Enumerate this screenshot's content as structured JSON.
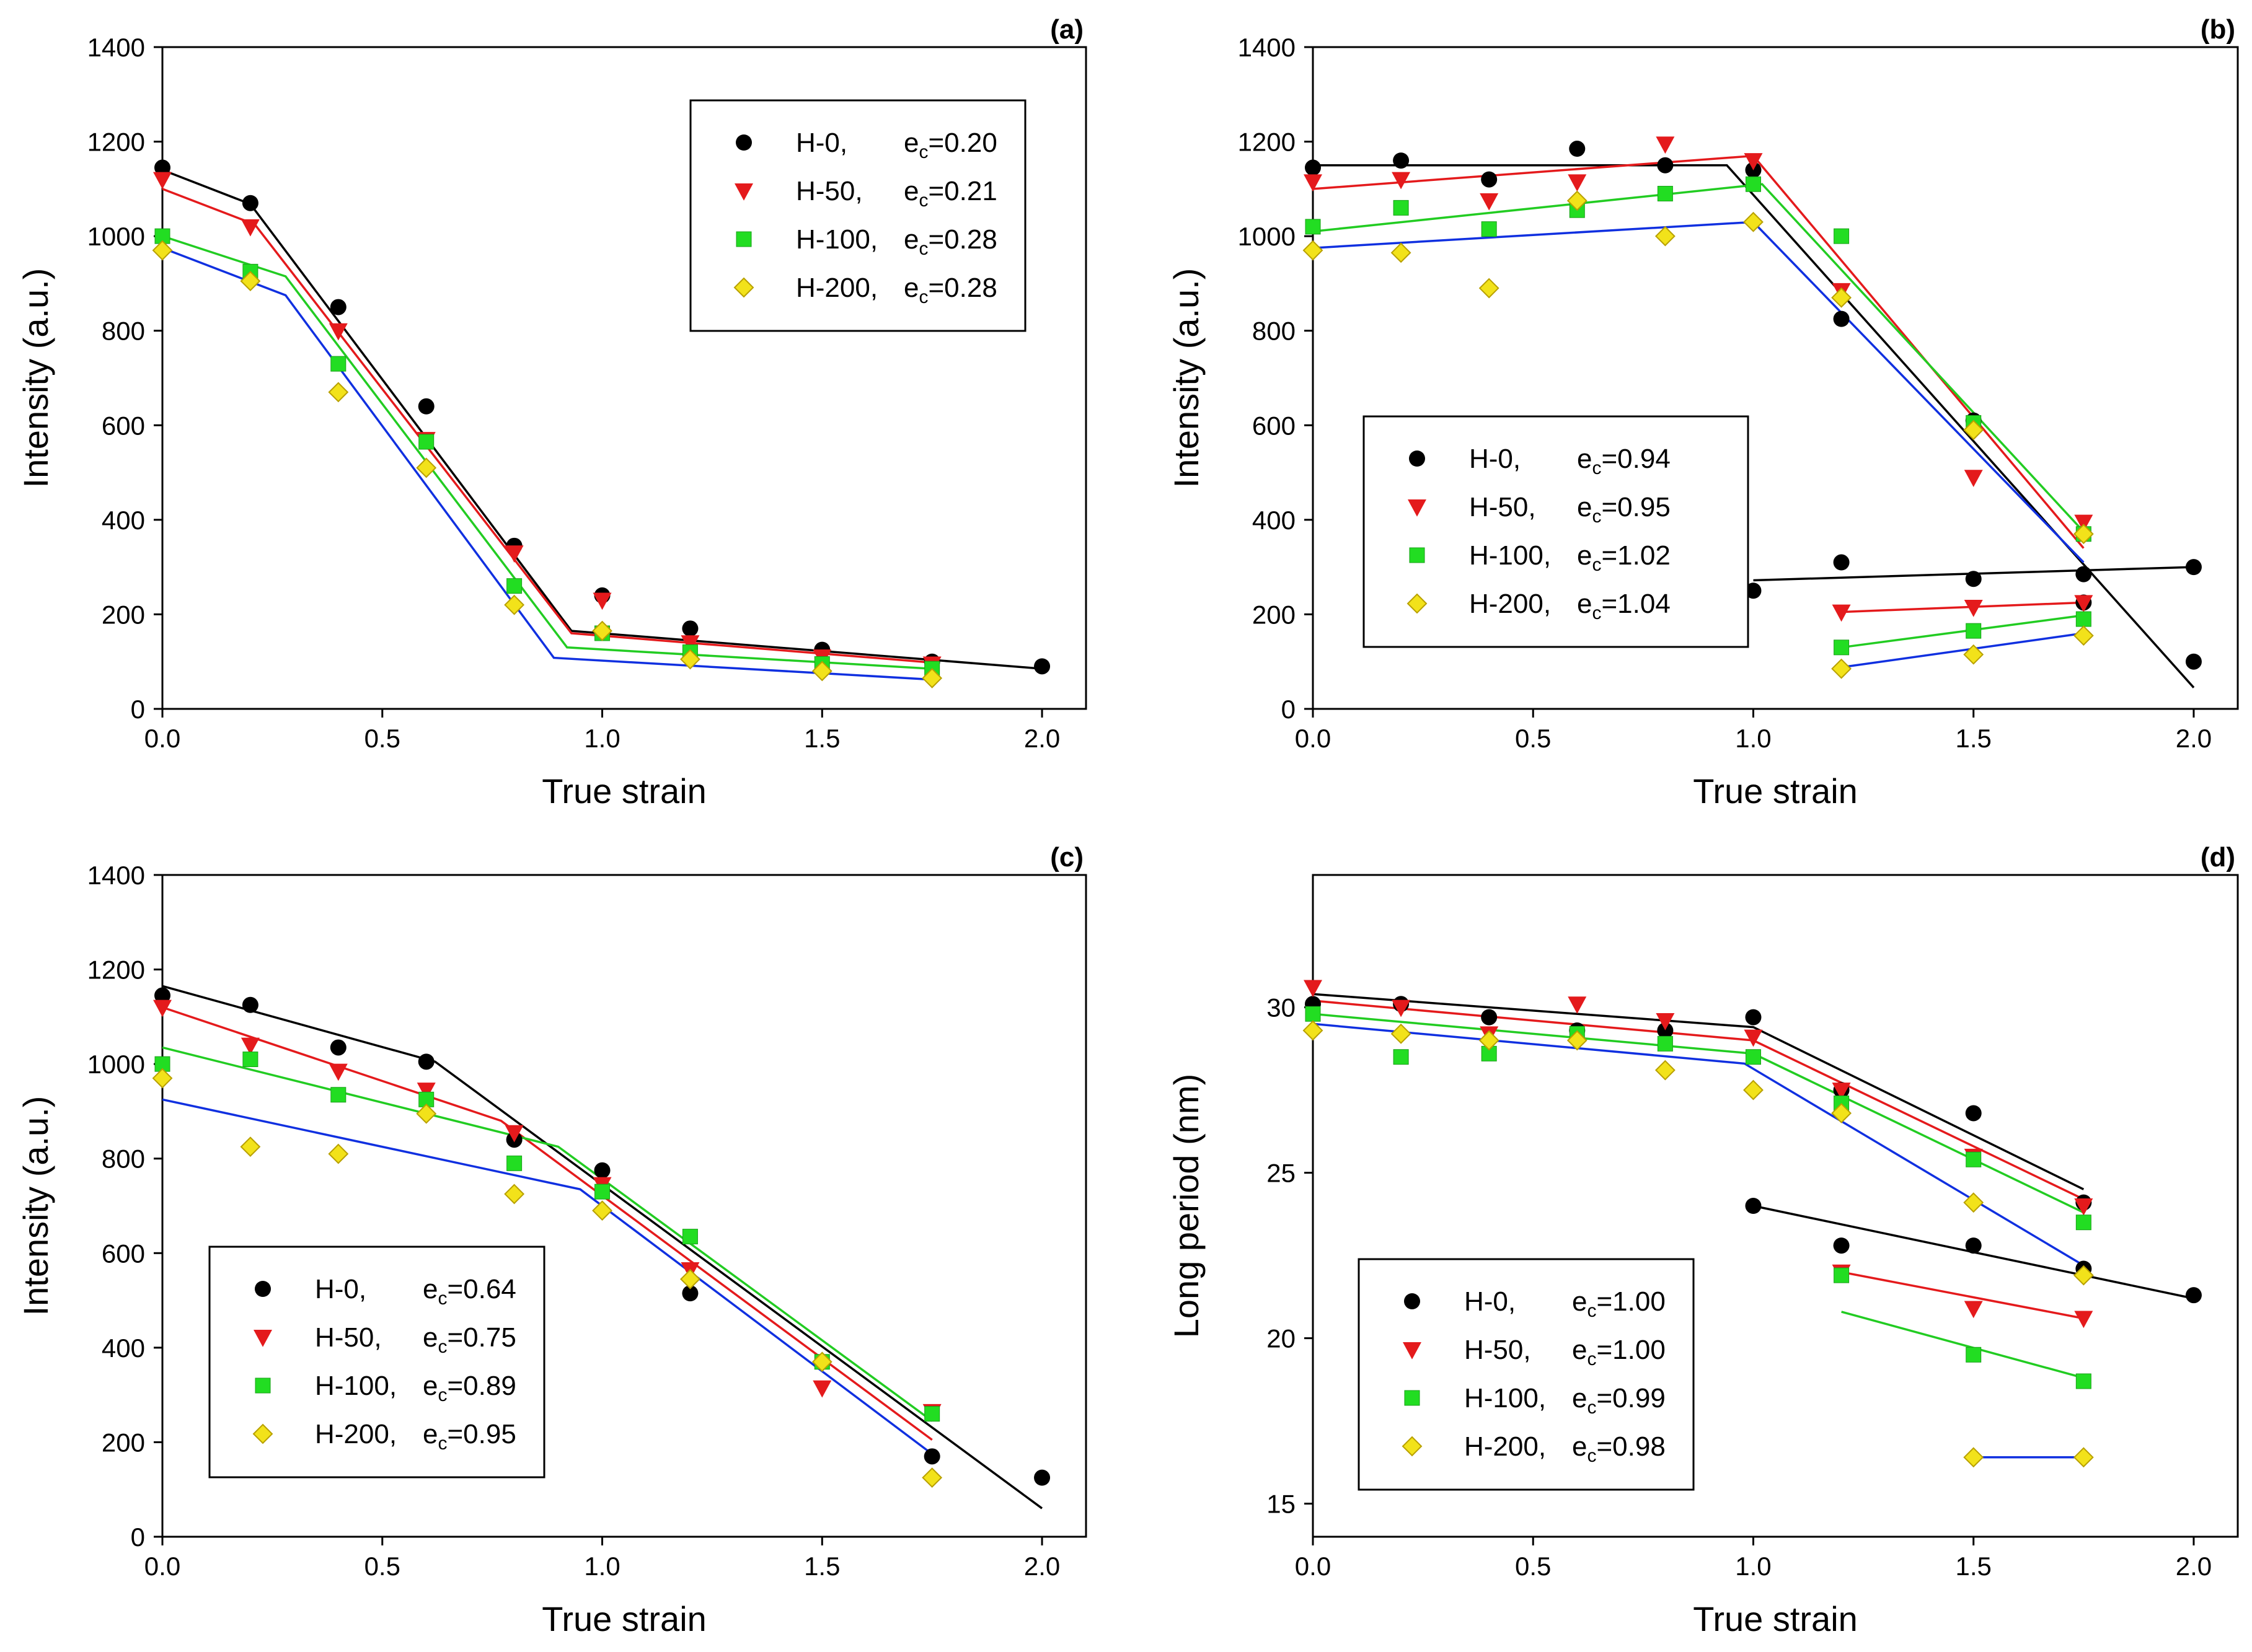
{
  "colors": {
    "H-0": "#000000",
    "H-50": "#e41a1c",
    "H-100": "#22dd22",
    "H-200": "#f2e21a",
    "H-200-edge": "#b8a000",
    "H-100-fit": "#22cc22",
    "H-200-fit": "#1030e0"
  },
  "chart_data": [
    {
      "type": "scatter",
      "panel": "(a)",
      "xlabel": "True strain",
      "ylabel": "Intensity (a.u.)",
      "xlim": [
        0,
        2.1
      ],
      "ylim": [
        0,
        1400
      ],
      "xticks": [
        "0.0",
        "0.5",
        "1.0",
        "1.5",
        "2.0"
      ],
      "xtick_values": [
        0,
        0.5,
        1.0,
        1.5,
        2.0
      ],
      "yticks": [
        "0",
        "200",
        "400",
        "600",
        "800",
        "1000",
        "1200",
        "1400"
      ],
      "ytick_values": [
        0,
        200,
        400,
        600,
        800,
        1000,
        1200,
        1400
      ],
      "legend_position": "top-right",
      "series": [
        {
          "key": "H-0",
          "name": "H-0,",
          "ec": "e=0.20",
          "marker": "circle",
          "x": [
            0,
            0.2,
            0.4,
            0.6,
            0.8,
            1.0,
            1.2,
            1.5,
            1.75,
            2.0
          ],
          "y": [
            1145,
            1070,
            850,
            640,
            345,
            240,
            170,
            125,
            100,
            90
          ],
          "fit": [
            [
              [
                0,
                1140
              ],
              [
                0.2,
                1068
              ],
              [
                0.93,
                165
              ],
              [
                2.0,
                85
              ]
            ]
          ]
        },
        {
          "key": "H-50",
          "name": "H-50,",
          "ec": "e=0.21",
          "marker": "triangle",
          "x": [
            0,
            0.2,
            0.4,
            0.6,
            0.8,
            1.0,
            1.2,
            1.5,
            1.75
          ],
          "y": [
            1120,
            1020,
            800,
            570,
            330,
            230,
            140,
            110,
            95
          ],
          "fit": [
            [
              [
                0,
                1100
              ],
              [
                0.21,
                1025
              ],
              [
                0.93,
                160
              ],
              [
                1.75,
                98
              ]
            ]
          ]
        },
        {
          "key": "H-100",
          "name": "H-100,",
          "ec": "e=0.28",
          "marker": "square",
          "x": [
            0,
            0.2,
            0.4,
            0.6,
            0.8,
            1.0,
            1.2,
            1.5,
            1.75
          ],
          "y": [
            1000,
            925,
            730,
            565,
            260,
            160,
            120,
            95,
            85
          ],
          "fit": [
            [
              [
                0,
                1000
              ],
              [
                0.28,
                915
              ],
              [
                0.92,
                130
              ],
              [
                1.75,
                85
              ]
            ]
          ]
        },
        {
          "key": "H-200",
          "name": "H-200,",
          "ec": "e=0.28",
          "marker": "diamond",
          "x": [
            0,
            0.2,
            0.4,
            0.6,
            0.8,
            1.0,
            1.2,
            1.5,
            1.75
          ],
          "y": [
            970,
            905,
            670,
            510,
            220,
            165,
            105,
            80,
            65
          ],
          "fit": [
            [
              [
                0,
                975
              ],
              [
                0.28,
                875
              ],
              [
                0.89,
                108
              ],
              [
                1.75,
                62
              ]
            ]
          ]
        }
      ]
    },
    {
      "type": "scatter",
      "panel": "(b)",
      "xlabel": "True strain",
      "ylabel": "Intensity (a.u.)",
      "xlim": [
        0,
        2.1
      ],
      "ylim": [
        0,
        1400
      ],
      "xticks": [
        "0.0",
        "0.5",
        "1.0",
        "1.5",
        "2.0"
      ],
      "xtick_values": [
        0,
        0.5,
        1.0,
        1.5,
        2.0
      ],
      "yticks": [
        "0",
        "200",
        "400",
        "600",
        "800",
        "1000",
        "1200",
        "1400"
      ],
      "ytick_values": [
        0,
        200,
        400,
        600,
        800,
        1000,
        1200,
        1400
      ],
      "legend_position": "center-left",
      "series": [
        {
          "key": "H-0",
          "name": "H-0,",
          "ec": "e=0.94",
          "marker": "circle",
          "x": [
            0,
            0.2,
            0.4,
            0.6,
            0.8,
            1.0,
            1.2,
            1.5,
            1.75,
            2.0,
            1.0,
            1.2,
            1.5,
            1.75,
            2.0
          ],
          "y": [
            1145,
            1160,
            1120,
            1185,
            1150,
            1140,
            825,
            610,
            225,
            100,
            250,
            310,
            275,
            285,
            300
          ],
          "fit": [
            [
              [
                0,
                1150
              ],
              [
                0.94,
                1150
              ],
              [
                2.0,
                45
              ]
            ],
            [
              [
                1.0,
                272
              ],
              [
                2.0,
                300
              ]
            ]
          ]
        },
        {
          "key": "H-50",
          "name": "H-50,",
          "ec": "e=0.95",
          "marker": "triangle",
          "x": [
            0,
            0.2,
            0.4,
            0.6,
            0.8,
            1.0,
            1.2,
            1.5,
            1.75,
            1.2,
            1.5,
            1.75
          ],
          "y": [
            1115,
            1120,
            1075,
            1115,
            1195,
            1160,
            885,
            490,
            395,
            205,
            215,
            225
          ],
          "fit": [
            [
              [
                0,
                1100
              ],
              [
                1.0,
                1170
              ],
              [
                1.75,
                340
              ]
            ],
            [
              [
                1.2,
                205
              ],
              [
                1.75,
                225
              ]
            ]
          ]
        },
        {
          "key": "H-100",
          "name": "H-100,",
          "ec": "e=1.02",
          "marker": "square",
          "x": [
            0,
            0.2,
            0.4,
            0.6,
            0.8,
            1.0,
            1.2,
            1.5,
            1.75,
            1.2,
            1.5,
            1.75
          ],
          "y": [
            1020,
            1060,
            1015,
            1055,
            1090,
            1110,
            1000,
            605,
            370,
            130,
            165,
            190
          ],
          "fit": [
            [
              [
                0,
                1010
              ],
              [
                1.02,
                1110
              ],
              [
                1.75,
                375
              ]
            ],
            [
              [
                1.2,
                130
              ],
              [
                1.75,
                198
              ]
            ]
          ]
        },
        {
          "key": "H-200",
          "name": "H-200,",
          "ec": "e=1.04",
          "marker": "diamond",
          "x": [
            0,
            0.2,
            0.4,
            0.6,
            0.8,
            1.0,
            1.2,
            1.5,
            1.75,
            1.2,
            1.5,
            1.75
          ],
          "y": [
            970,
            965,
            890,
            1075,
            1000,
            1030,
            870,
            590,
            370,
            85,
            115,
            155
          ],
          "fit": [
            [
              [
                0,
                975
              ],
              [
                1.0,
                1030
              ],
              [
                1.75,
                310
              ]
            ],
            [
              [
                1.2,
                88
              ],
              [
                1.75,
                160
              ]
            ]
          ]
        }
      ]
    },
    {
      "type": "scatter",
      "panel": "(c)",
      "xlabel": "True strain",
      "ylabel": "Intensity (a.u.)",
      "xlim": [
        0,
        2.1
      ],
      "ylim": [
        0,
        1400
      ],
      "xticks": [
        "0.0",
        "0.5",
        "1.0",
        "1.5",
        "2.0"
      ],
      "xtick_values": [
        0,
        0.5,
        1.0,
        1.5,
        2.0
      ],
      "yticks": [
        "0",
        "200",
        "400",
        "600",
        "800",
        "1000",
        "1200",
        "1400"
      ],
      "ytick_values": [
        0,
        200,
        400,
        600,
        800,
        1000,
        1200,
        1400
      ],
      "legend_position": "bottom-left",
      "series": [
        {
          "key": "H-0",
          "name": "H-0,",
          "ec": "e=0.64",
          "marker": "circle",
          "x": [
            0,
            0.2,
            0.4,
            0.6,
            0.8,
            1.0,
            1.2,
            1.5,
            1.75,
            2.0
          ],
          "y": [
            1145,
            1125,
            1035,
            1005,
            840,
            775,
            515,
            370,
            170,
            125
          ],
          "fit": [
            [
              [
                0,
                1165
              ],
              [
                0.62,
                1005
              ],
              [
                2.0,
                60
              ]
            ]
          ]
        },
        {
          "key": "H-50",
          "name": "H-50,",
          "ec": "e=0.75",
          "marker": "triangle",
          "x": [
            0,
            0.2,
            0.4,
            0.6,
            0.8,
            1.0,
            1.2,
            1.5,
            1.75
          ],
          "y": [
            1120,
            1040,
            985,
            945,
            855,
            745,
            565,
            315,
            265
          ],
          "fit": [
            [
              [
                0,
                1120
              ],
              [
                0.77,
                880
              ],
              [
                1.75,
                205
              ]
            ]
          ]
        },
        {
          "key": "H-100",
          "name": "H-100,",
          "ec": "e=0.89",
          "marker": "square",
          "x": [
            0,
            0.2,
            0.4,
            0.6,
            0.8,
            1.0,
            1.2,
            1.5,
            1.75
          ],
          "y": [
            1000,
            1010,
            935,
            925,
            790,
            730,
            635,
            370,
            260
          ],
          "fit": [
            [
              [
                0,
                1035
              ],
              [
                0.9,
                825
              ],
              [
                1.75,
                245
              ]
            ]
          ]
        },
        {
          "key": "H-200",
          "name": "H-200,",
          "ec": "e=0.95",
          "marker": "diamond",
          "x": [
            0,
            0.2,
            0.4,
            0.6,
            0.8,
            1.0,
            1.2,
            1.5,
            1.75
          ],
          "y": [
            970,
            825,
            810,
            895,
            725,
            690,
            545,
            370,
            125
          ],
          "fit": [
            [
              [
                0,
                925
              ],
              [
                0.95,
                735
              ],
              [
                1.75,
                175
              ]
            ]
          ]
        }
      ]
    },
    {
      "type": "scatter",
      "panel": "(d)",
      "xlabel": "True strain",
      "ylabel": "Long period (nm)",
      "xlim": [
        0,
        2.1
      ],
      "ylim": [
        14,
        34
      ],
      "xticks": [
        "0.0",
        "0.5",
        "1.0",
        "1.5",
        "2.0"
      ],
      "xtick_values": [
        0,
        0.5,
        1.0,
        1.5,
        2.0
      ],
      "yticks": [
        "15",
        "20",
        "25",
        "30"
      ],
      "ytick_values": [
        15,
        20,
        25,
        30
      ],
      "legend_position": "bottom-left",
      "series": [
        {
          "key": "H-0",
          "name": "H-0,",
          "ec": "e=1.00",
          "marker": "circle",
          "x": [
            0,
            0.2,
            0.4,
            0.6,
            0.8,
            1.0,
            1.2,
            1.5,
            1.75,
            1.0,
            1.2,
            1.5,
            1.75,
            2.0
          ],
          "y": [
            30.1,
            30.1,
            29.7,
            29.3,
            29.3,
            29.7,
            27.5,
            26.8,
            24.1,
            24.0,
            22.8,
            22.8,
            22.1,
            21.3
          ],
          "fit": [
            [
              [
                0,
                30.4
              ],
              [
                1.0,
                29.4
              ],
              [
                1.75,
                24.5
              ]
            ],
            [
              [
                1.0,
                24.0
              ],
              [
                2.0,
                21.2
              ]
            ]
          ]
        },
        {
          "key": "H-50",
          "name": "H-50,",
          "ec": "e=1.00",
          "marker": "triangle",
          "x": [
            0,
            0.2,
            0.4,
            0.6,
            0.8,
            1.0,
            1.2,
            1.5,
            1.75,
            1.2,
            1.5,
            1.75
          ],
          "y": [
            30.6,
            30.0,
            29.2,
            30.1,
            29.6,
            29.1,
            27.5,
            25.5,
            24.0,
            22.0,
            20.9,
            20.6
          ],
          "fit": [
            [
              [
                0,
                30.2
              ],
              [
                1.0,
                29.0
              ],
              [
                1.75,
                24.2
              ]
            ],
            [
              [
                1.2,
                22.0
              ],
              [
                1.75,
                20.6
              ]
            ]
          ]
        },
        {
          "key": "H-100",
          "name": "H-100,",
          "ec": "e=0.99",
          "marker": "square",
          "x": [
            0,
            0.2,
            0.4,
            0.6,
            0.8,
            1.0,
            1.2,
            1.5,
            1.75,
            1.2,
            1.5,
            1.75
          ],
          "y": [
            29.8,
            28.5,
            28.6,
            29.2,
            28.9,
            28.5,
            27.1,
            25.4,
            23.5,
            21.9,
            19.5,
            18.7
          ],
          "fit": [
            [
              [
                0,
                29.8
              ],
              [
                1.0,
                28.6
              ],
              [
                1.75,
                23.8
              ]
            ],
            [
              [
                1.2,
                20.8
              ],
              [
                1.75,
                18.8
              ]
            ]
          ]
        },
        {
          "key": "H-200",
          "name": "H-200,",
          "ec": "e=0.98",
          "marker": "diamond",
          "x": [
            0,
            0.2,
            0.4,
            0.6,
            0.8,
            1.0,
            1.2,
            1.5,
            1.75,
            1.5,
            1.75
          ],
          "y": [
            29.3,
            29.2,
            29.0,
            29.0,
            28.1,
            27.5,
            26.8,
            24.1,
            21.9,
            16.4,
            16.4
          ],
          "fit": [
            [
              [
                0,
                29.5
              ],
              [
                0.98,
                28.3
              ],
              [
                1.75,
                22.2
              ]
            ],
            [
              [
                1.5,
                16.4
              ],
              [
                1.75,
                16.4
              ]
            ]
          ]
        }
      ]
    }
  ]
}
